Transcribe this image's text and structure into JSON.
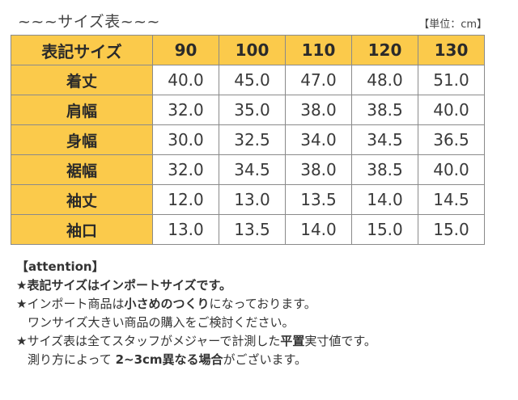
{
  "title": "~~~サイズ表~~~",
  "unit": "【単位：cm】",
  "table": {
    "header": [
      "表記サイズ",
      "90",
      "100",
      "110",
      "120",
      "130"
    ],
    "rows": [
      {
        "label": "着丈",
        "values": [
          "40.0",
          "45.0",
          "47.0",
          "48.0",
          "51.0"
        ]
      },
      {
        "label": "肩幅",
        "values": [
          "32.0",
          "35.0",
          "38.0",
          "38.5",
          "40.0"
        ]
      },
      {
        "label": "身幅",
        "values": [
          "30.0",
          "32.5",
          "34.0",
          "34.5",
          "36.5"
        ]
      },
      {
        "label": "裾幅",
        "values": [
          "32.0",
          "34.5",
          "38.0",
          "38.5",
          "40.0"
        ]
      },
      {
        "label": "袖丈",
        "values": [
          "12.0",
          "13.0",
          "13.5",
          "14.0",
          "14.5"
        ]
      },
      {
        "label": "袖口",
        "values": [
          "13.0",
          "13.5",
          "14.0",
          "15.0",
          "15.0"
        ]
      }
    ]
  },
  "notes": {
    "heading": "【attention】",
    "line1": "★表記サイズはインポートサイズです。",
    "line2": {
      "a": "★インポート商品は",
      "b": "小さめのつくり",
      "c": "になっております。"
    },
    "line3": "ワンサイズ大きい商品の購入をご検討ください。",
    "line4": {
      "a": "★サイズ表は全てスタッフがメジャーで計測した",
      "b": "平置",
      "c": "実寸値です。"
    },
    "line5": {
      "a": "測り方によって ",
      "b": "2~3cm異なる場合",
      "c": "がございます。"
    }
  }
}
